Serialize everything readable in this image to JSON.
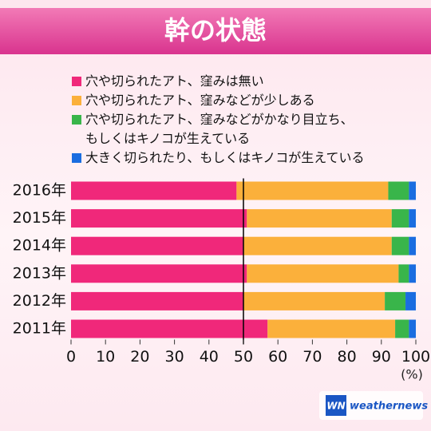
{
  "chart_data": {
    "type": "stacked_barh",
    "title": "幹の状態",
    "categories": [
      "2016年",
      "2015年",
      "2014年",
      "2013年",
      "2012年",
      "2011年"
    ],
    "series": [
      {
        "name": "穴や切られたアト、窪みは無い",
        "color": "#f0287a",
        "values": [
          48,
          51,
          50,
          51,
          50,
          57
        ]
      },
      {
        "name": "穴や切られたアト、窪みなどが少しある",
        "color": "#fbb03b",
        "values": [
          44,
          42,
          43,
          44,
          41,
          37
        ]
      },
      {
        "name": "穴や切られたアト、窪みなどがかなり目立ち、\nもしくはキノコが生えている",
        "color": "#39b54a",
        "values": [
          6,
          5,
          5,
          3,
          6,
          4
        ]
      },
      {
        "name": "大きく切られたり、もしくはキノコが生えている",
        "color": "#1a6de0",
        "values": [
          2,
          2,
          2,
          2,
          3,
          2
        ]
      }
    ],
    "xlim": [
      0,
      100
    ],
    "xticks": [
      0,
      10,
      20,
      30,
      40,
      50,
      60,
      70,
      80,
      90,
      100
    ],
    "x_unit_label": "(%)",
    "reference_line": 50,
    "logo": {
      "mark": "WN",
      "text": "weathernews"
    }
  }
}
